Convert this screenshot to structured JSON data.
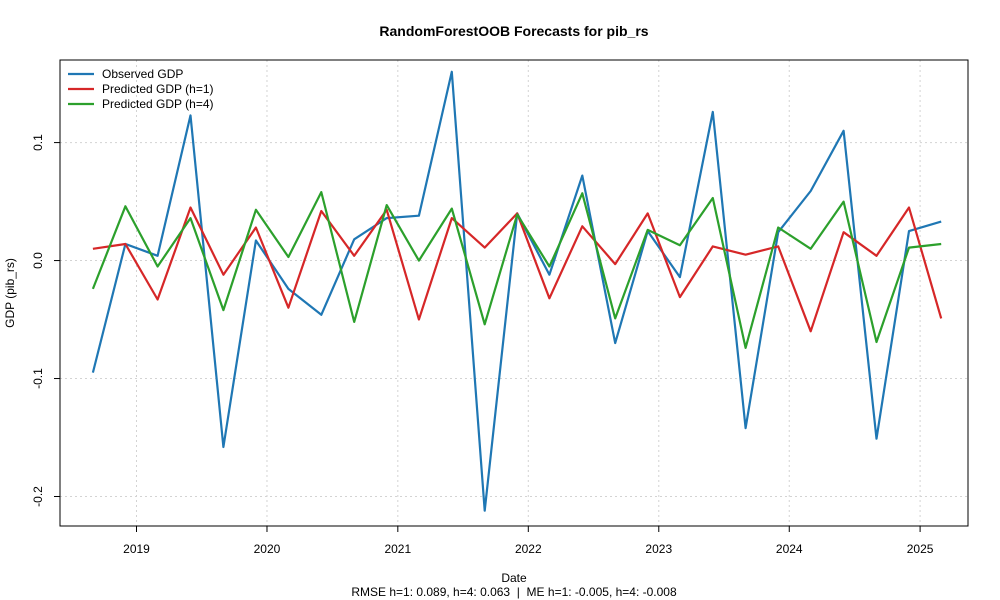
{
  "chart_data": {
    "type": "line",
    "title": "RandomForestOOB Forecasts for pib_rs",
    "xlabel": "Date",
    "ylabel": "GDP (pib_rs)",
    "footer": "RMSE h=1: 0.089, h=4: 0.063  |  ME h=1: -0.005, h=4: -0.008",
    "x_ticks": [
      "2019",
      "2020",
      "2021",
      "2022",
      "2023",
      "2024",
      "2025"
    ],
    "y_ticks": [
      -0.2,
      -0.1,
      0.0,
      0.1
    ],
    "y_tick_labels": [
      "-0.2",
      "-0.1",
      "0.0",
      "0.1"
    ],
    "xlim": [
      "2018-06-01",
      "2025-05-15"
    ],
    "ylim": [
      -0.225,
      0.17
    ],
    "grid": true,
    "legend_position": "top-left",
    "x": [
      "2018-09-01",
      "2018-12-01",
      "2019-03-01",
      "2019-06-01",
      "2019-09-01",
      "2019-12-01",
      "2020-03-01",
      "2020-06-01",
      "2020-09-01",
      "2020-12-01",
      "2021-03-01",
      "2021-06-01",
      "2021-09-01",
      "2021-12-01",
      "2022-03-01",
      "2022-06-01",
      "2022-09-01",
      "2022-12-01",
      "2023-03-01",
      "2023-06-01",
      "2023-09-01",
      "2023-12-01",
      "2024-03-01",
      "2024-06-01",
      "2024-09-01",
      "2024-12-01",
      "2025-03-01"
    ],
    "series": [
      {
        "name": "Observed GDP",
        "color": "#1f77b4",
        "values": [
          -0.095,
          0.014,
          0.004,
          0.123,
          -0.158,
          0.017,
          -0.024,
          -0.046,
          0.018,
          0.036,
          0.038,
          0.16,
          -0.212,
          0.04,
          -0.012,
          0.072,
          -0.07,
          0.025,
          -0.014,
          0.126,
          -0.142,
          0.024,
          0.059,
          0.11,
          -0.151,
          0.025,
          0.033
        ]
      },
      {
        "name": "Predicted GDP (h=1)",
        "color": "#d62728",
        "values": [
          0.01,
          0.014,
          -0.033,
          0.045,
          -0.012,
          0.028,
          -0.04,
          0.042,
          0.004,
          0.043,
          -0.05,
          0.036,
          0.011,
          0.04,
          -0.032,
          0.029,
          -0.003,
          0.04,
          -0.031,
          0.012,
          0.005,
          0.012,
          -0.06,
          0.024,
          0.004,
          0.045,
          -0.049
        ]
      },
      {
        "name": "Predicted GDP (h=4)",
        "color": "#2ca02c",
        "values": [
          -0.024,
          0.046,
          -0.005,
          0.036,
          -0.042,
          0.043,
          0.003,
          0.058,
          -0.052,
          0.047,
          0.0,
          0.044,
          -0.054,
          0.039,
          -0.005,
          0.057,
          -0.049,
          0.026,
          0.013,
          0.053,
          -0.074,
          0.028,
          0.01,
          0.05,
          -0.069,
          0.011,
          0.014
        ]
      }
    ]
  }
}
